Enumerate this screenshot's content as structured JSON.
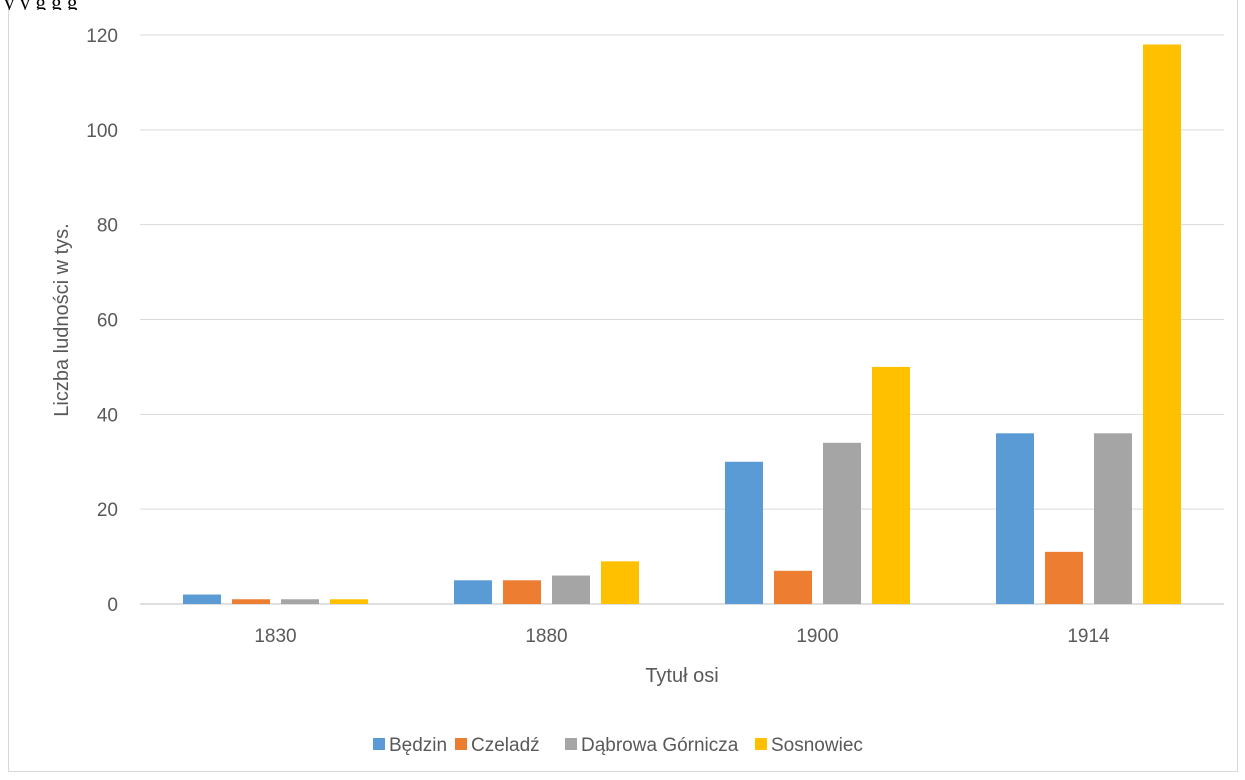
{
  "page_text_fragment": "y         y g                      g      g",
  "chart_data": {
    "type": "bar",
    "title": "",
    "xlabel": "Tytuł osi",
    "ylabel": "Liczba ludności w tys.",
    "categories": [
      "1830",
      "1880",
      "1900",
      "1914"
    ],
    "ylim": [
      0,
      120
    ],
    "yticks": [
      0,
      20,
      40,
      60,
      80,
      100,
      120
    ],
    "grid": true,
    "legend_position": "bottom",
    "series": [
      {
        "name": "Będzin",
        "color": "#5b9bd5",
        "values": [
          2,
          5,
          30,
          36
        ]
      },
      {
        "name": "Czeladź",
        "color": "#ed7d31",
        "values": [
          1,
          5,
          7,
          11
        ]
      },
      {
        "name": "Dąbrowa Górnicza",
        "color": "#a5a5a5",
        "values": [
          1,
          6,
          34,
          36
        ]
      },
      {
        "name": "Sosnowiec",
        "color": "#ffc000",
        "values": [
          1,
          9,
          50,
          118
        ]
      }
    ]
  }
}
